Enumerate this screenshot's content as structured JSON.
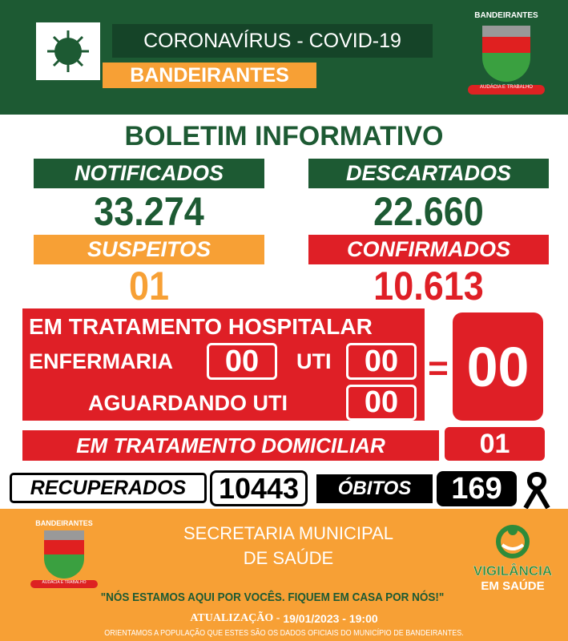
{
  "header": {
    "title": "CORONAVÍRUS - COVID-19",
    "city": "BANDEIRANTES",
    "crest_text": "BANDEIRANTES",
    "crest_motto": "AUDÁCIA E TRABALHO",
    "virus_icon": "virus-icon"
  },
  "bulletin_title": "BOLETIM INFORMATIVO",
  "stats": {
    "notificados": {
      "label": "NOTIFICADOS",
      "value": "33.274"
    },
    "descartados": {
      "label": "DESCARTADOS",
      "value": "22.660"
    },
    "suspeitos": {
      "label": "SUSPEITOS",
      "value": "01"
    },
    "confirmados": {
      "label": "CONFIRMADOS",
      "value": "10.613"
    }
  },
  "hospital": {
    "title": "EM TRATAMENTO HOSPITALAR",
    "enfermaria_label": "ENFERMARIA",
    "enfermaria": "00",
    "uti_label": "UTI",
    "uti": "00",
    "aguardando_label": "AGUARDANDO UTI",
    "aguardando": "00",
    "equals": "=",
    "total": "00"
  },
  "domiciliar": {
    "label": "EM TRATAMENTO DOMICILIAR",
    "value": "01"
  },
  "recuperados": {
    "label": "RECUPERADOS",
    "value": "10443"
  },
  "obitos": {
    "label": "ÓBITOS",
    "value": "169"
  },
  "footer": {
    "secretaria_line1": "SECRETARIA MUNICIPAL",
    "secretaria_line2": "DE SAÚDE",
    "vigilancia_line1": "VIGILÂNCIA",
    "vigilancia_line2": "EM SAÚDE",
    "quote": "\"NÓS ESTAMOS AQUI POR VOCÊS. FIQUEM EM CASA POR NÓS!\"",
    "update_label": "ATUALIZAÇÃO -",
    "update_value": "19/01/2023 - 19:00",
    "notice": "ORIENTAMOS A POPULAÇÃO QUE ESTES SÃO OS DADOS OFICIAIS DO MUNICÍPIO DE BANDEIRANTES."
  },
  "colors": {
    "green": "#1d5a33",
    "orange": "#f7a035",
    "red": "#df1f26"
  }
}
